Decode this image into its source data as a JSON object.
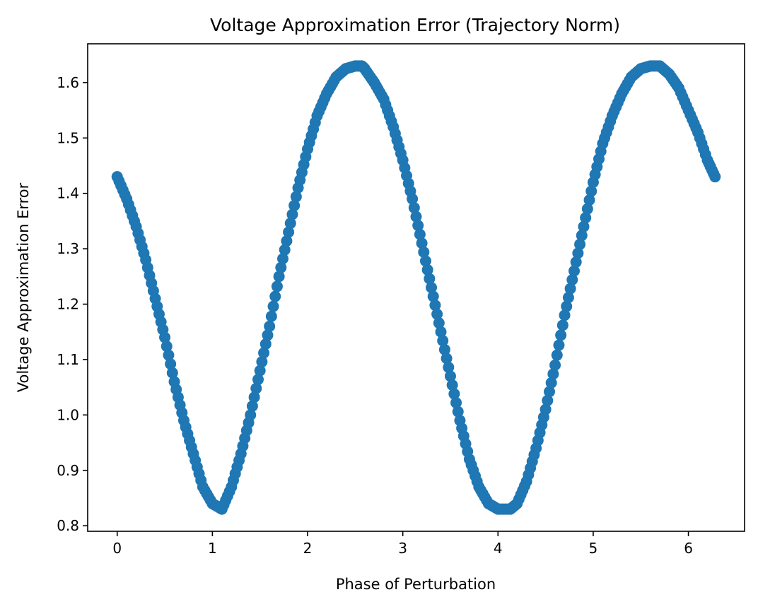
{
  "chart_data": {
    "type": "scatter",
    "title": "Voltage Approximation Error (Trajectory Norm)",
    "xlabel": "Phase of Perturbation",
    "ylabel": "Voltage Approximation Error",
    "xlim": [
      -0.31,
      6.59
    ],
    "ylim": [
      0.79,
      1.67
    ],
    "xticks": [
      {
        "value": 0,
        "label": "0"
      },
      {
        "value": 1,
        "label": "1"
      },
      {
        "value": 2,
        "label": "2"
      },
      {
        "value": 3,
        "label": "3"
      },
      {
        "value": 4,
        "label": "4"
      },
      {
        "value": 5,
        "label": "5"
      },
      {
        "value": 6,
        "label": "6"
      }
    ],
    "yticks": [
      {
        "value": 0.8,
        "label": "0.8"
      },
      {
        "value": 0.9,
        "label": "0.9"
      },
      {
        "value": 1.0,
        "label": "1.0"
      },
      {
        "value": 1.1,
        "label": "1.1"
      },
      {
        "value": 1.2,
        "label": "1.2"
      },
      {
        "value": 1.3,
        "label": "1.3"
      },
      {
        "value": 1.4,
        "label": "1.4"
      },
      {
        "value": 1.5,
        "label": "1.5"
      },
      {
        "value": 1.6,
        "label": "1.6"
      }
    ],
    "grid": false,
    "marker_color": "#1f77b4",
    "series": [
      {
        "x": [
          0.0,
          0.1,
          0.2,
          0.3,
          0.4,
          0.5,
          0.6,
          0.7,
          0.8,
          0.9,
          1.0,
          1.1,
          1.2,
          1.3,
          1.4,
          1.5,
          1.6,
          1.7,
          1.8,
          1.9,
          2.0,
          2.1,
          2.2,
          2.3,
          2.4,
          2.5,
          2.57,
          2.6,
          2.7,
          2.8,
          2.9,
          3.0,
          3.1,
          3.2,
          3.3,
          3.4,
          3.5,
          3.6,
          3.7,
          3.8,
          3.9,
          4.0,
          4.13,
          4.2,
          4.3,
          4.4,
          4.5,
          4.6,
          4.7,
          4.8,
          4.9,
          5.0,
          5.1,
          5.2,
          5.3,
          5.4,
          5.5,
          5.6,
          5.7,
          5.8,
          5.9,
          6.0,
          6.1,
          6.2,
          6.28
        ],
        "y": [
          1.43,
          1.39,
          1.34,
          1.28,
          1.21,
          1.14,
          1.06,
          0.99,
          0.93,
          0.87,
          0.84,
          0.83,
          0.87,
          0.93,
          1.0,
          1.08,
          1.16,
          1.25,
          1.33,
          1.41,
          1.48,
          1.54,
          1.58,
          1.61,
          1.625,
          1.63,
          1.63,
          1.625,
          1.6,
          1.57,
          1.52,
          1.46,
          1.39,
          1.31,
          1.23,
          1.15,
          1.07,
          0.99,
          0.92,
          0.87,
          0.84,
          0.83,
          0.83,
          0.84,
          0.88,
          0.94,
          1.01,
          1.09,
          1.18,
          1.26,
          1.34,
          1.42,
          1.49,
          1.54,
          1.58,
          1.61,
          1.625,
          1.63,
          1.63,
          1.615,
          1.59,
          1.55,
          1.51,
          1.46,
          1.43
        ]
      }
    ]
  }
}
